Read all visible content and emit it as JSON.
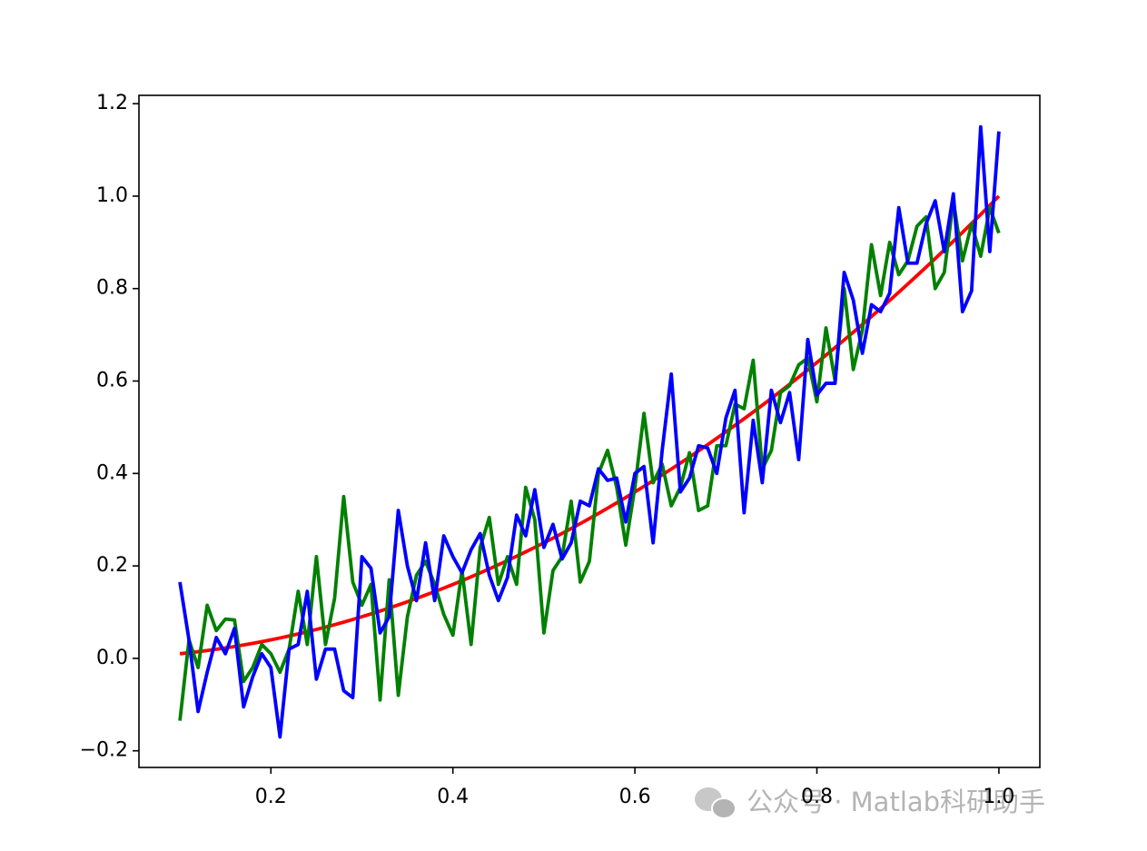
{
  "chart_data": {
    "type": "line",
    "x": [
      0.1,
      0.11,
      0.12,
      0.13,
      0.14,
      0.15,
      0.16,
      0.17,
      0.18,
      0.19,
      0.2,
      0.21,
      0.22,
      0.23,
      0.24,
      0.25,
      0.26,
      0.27,
      0.28,
      0.29,
      0.3,
      0.31,
      0.32,
      0.33,
      0.34,
      0.35,
      0.36,
      0.37,
      0.38,
      0.39,
      0.4,
      0.41,
      0.42,
      0.43,
      0.44,
      0.45,
      0.46,
      0.47,
      0.48,
      0.49,
      0.5,
      0.51,
      0.52,
      0.53,
      0.54,
      0.55,
      0.56,
      0.57,
      0.58,
      0.59,
      0.6,
      0.61,
      0.62,
      0.63,
      0.64,
      0.65,
      0.66,
      0.67,
      0.68,
      0.69,
      0.7,
      0.71,
      0.72,
      0.73,
      0.74,
      0.75,
      0.76,
      0.77,
      0.78,
      0.79,
      0.8,
      0.81,
      0.82,
      0.83,
      0.84,
      0.85,
      0.86,
      0.87,
      0.88,
      0.89,
      0.9,
      0.91,
      0.92,
      0.93,
      0.94,
      0.95,
      0.96,
      0.97,
      0.98,
      0.99,
      1.0
    ],
    "series": [
      {
        "color": "#ff0000",
        "values": [
          0.01,
          0.0121,
          0.0144,
          0.0169,
          0.0196,
          0.0225,
          0.0256,
          0.0289,
          0.0324,
          0.0361,
          0.04,
          0.0441,
          0.0484,
          0.0529,
          0.0576,
          0.0625,
          0.0676,
          0.0729,
          0.0784,
          0.0841,
          0.09,
          0.0961,
          0.1024,
          0.1089,
          0.1156,
          0.1225,
          0.1296,
          0.1369,
          0.1444,
          0.1521,
          0.16,
          0.1681,
          0.1764,
          0.1849,
          0.1936,
          0.2025,
          0.2116,
          0.2209,
          0.2304,
          0.2401,
          0.25,
          0.2601,
          0.2704,
          0.2809,
          0.2916,
          0.3025,
          0.3136,
          0.3249,
          0.3364,
          0.3481,
          0.36,
          0.3721,
          0.3844,
          0.3969,
          0.4096,
          0.4225,
          0.4356,
          0.4489,
          0.4624,
          0.4761,
          0.49,
          0.5041,
          0.5184,
          0.5329,
          0.5476,
          0.5625,
          0.5776,
          0.5929,
          0.6084,
          0.6241,
          0.64,
          0.6561,
          0.6724,
          0.6889,
          0.7056,
          0.7225,
          0.7396,
          0.7569,
          0.7744,
          0.7921,
          0.81,
          0.8281,
          0.8464,
          0.8649,
          0.8836,
          0.9025,
          0.9216,
          0.9409,
          0.9604,
          0.9801,
          1.0
        ]
      },
      {
        "color": "#008000",
        "values": [
          -0.135,
          0.04,
          -0.02,
          0.115,
          0.06,
          0.085,
          0.083,
          -0.05,
          -0.02,
          0.03,
          0.01,
          -0.03,
          0.02,
          0.145,
          0.03,
          0.22,
          0.03,
          0.13,
          0.35,
          0.165,
          0.115,
          0.16,
          -0.09,
          0.17,
          -0.08,
          0.09,
          0.18,
          0.21,
          0.16,
          0.095,
          0.05,
          0.19,
          0.03,
          0.24,
          0.305,
          0.16,
          0.22,
          0.16,
          0.37,
          0.3,
          0.055,
          0.19,
          0.22,
          0.34,
          0.165,
          0.21,
          0.4,
          0.45,
          0.37,
          0.245,
          0.37,
          0.53,
          0.38,
          0.42,
          0.33,
          0.37,
          0.445,
          0.32,
          0.33,
          0.46,
          0.46,
          0.55,
          0.54,
          0.645,
          0.41,
          0.45,
          0.575,
          0.59,
          0.635,
          0.65,
          0.555,
          0.715,
          0.6,
          0.8,
          0.625,
          0.71,
          0.895,
          0.785,
          0.9,
          0.83,
          0.86,
          0.935,
          0.955,
          0.8,
          0.835,
          0.99,
          0.86,
          0.94,
          0.87,
          0.975,
          0.92
        ]
      },
      {
        "color": "#0000ff",
        "values": [
          0.165,
          0.04,
          -0.115,
          -0.03,
          0.045,
          0.01,
          0.065,
          -0.105,
          -0.04,
          0.01,
          -0.02,
          -0.17,
          0.02,
          0.03,
          0.145,
          -0.045,
          0.02,
          0.02,
          -0.07,
          -0.085,
          0.22,
          0.195,
          0.055,
          0.09,
          0.32,
          0.2,
          0.125,
          0.25,
          0.125,
          0.265,
          0.22,
          0.185,
          0.235,
          0.27,
          0.18,
          0.125,
          0.175,
          0.31,
          0.265,
          0.365,
          0.24,
          0.29,
          0.215,
          0.25,
          0.34,
          0.33,
          0.41,
          0.385,
          0.39,
          0.295,
          0.4,
          0.415,
          0.25,
          0.45,
          0.615,
          0.36,
          0.39,
          0.46,
          0.455,
          0.4,
          0.52,
          0.58,
          0.315,
          0.515,
          0.38,
          0.58,
          0.51,
          0.575,
          0.43,
          0.69,
          0.57,
          0.595,
          0.595,
          0.835,
          0.775,
          0.66,
          0.765,
          0.75,
          0.79,
          0.975,
          0.855,
          0.855,
          0.94,
          0.99,
          0.88,
          1.005,
          0.75,
          0.795,
          1.15,
          0.88,
          1.14
        ]
      }
    ],
    "xlim": [
      0.055,
      1.045
    ],
    "ylim": [
      -0.236,
      1.218
    ],
    "xticks": [
      0.2,
      0.4,
      0.6,
      0.8,
      {
        "value": 1.0,
        "label": "1.0"
      }
    ],
    "yticks": [
      {
        "value": -0.2,
        "label": "−0.2"
      },
      {
        "value": 0,
        "label": "0.0"
      },
      0.2,
      0.4,
      0.6,
      0.8,
      {
        "value": 1.0,
        "label": "1.0"
      },
      1.2
    ],
    "grid": false
  },
  "watermark": "公众号 · Matlab科研助手"
}
